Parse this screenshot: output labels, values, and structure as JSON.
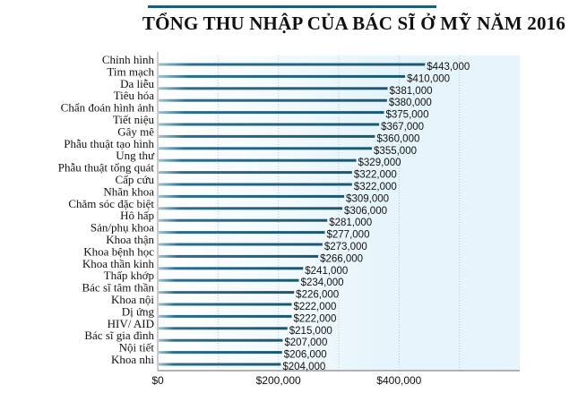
{
  "chart_data": {
    "type": "bar",
    "orientation": "horizontal",
    "title": "TỔNG THU NHẬP CỦA BÁC SĨ Ở MỸ NĂM 2016",
    "categories": [
      "Chỉnh hình",
      "Tim mạch",
      "Da liễu",
      "Tiêu hóa",
      "Chẩn đoán hình ảnh",
      "Tiết niệu",
      "Gây mê",
      "Phẫu thuật tạo hình",
      "Ung thư",
      "Phẫu thuật tổng quát",
      "Cấp cứu",
      "Nhãn khoa",
      "Chăm sóc đặc biệt",
      "Hô hấp",
      "Sản/phụ khoa",
      "Khoa thận",
      "Khoa bệnh học",
      "Khoa thần kinh",
      "Thấp khớp",
      "Bác sĩ tâm thần",
      "Khoa nội",
      "Dị ứng",
      "HIV/ AID",
      "Bác sĩ gia đình",
      "Nội tiết",
      "Khoa nhi"
    ],
    "values": [
      443000,
      410000,
      381000,
      380000,
      375000,
      367000,
      360000,
      355000,
      329000,
      322000,
      322000,
      309000,
      306000,
      281000,
      277000,
      273000,
      266000,
      241000,
      234000,
      226000,
      222000,
      222000,
      215000,
      207000,
      206000,
      204000
    ],
    "value_labels": [
      "$443,000",
      "$410,000",
      "$381,000",
      "$380,000",
      "$375,000",
      "$367,000",
      "$360,000",
      "$355,000",
      "$329,000",
      "$322,000",
      "$322,000",
      "$309,000",
      "$306,000",
      "$281,000",
      "$277,000",
      "$273,000",
      "$266,000",
      "$241,000",
      "$234,000",
      "$226,000",
      "$222,000",
      "$222,000",
      "$215,000",
      "$207,000",
      "$206,000",
      "$204,000"
    ],
    "xticks": [
      0,
      200000,
      400000
    ],
    "xtick_labels": [
      "$0",
      "$200,000",
      "$400,000"
    ],
    "xlim": [
      0,
      600000
    ],
    "grid": true,
    "xlabel": "",
    "ylabel": "",
    "colors": {
      "bar": "#1d5c7a",
      "plot_bg": "#e8f6fc",
      "title_rule": "#1d5c7a"
    }
  }
}
